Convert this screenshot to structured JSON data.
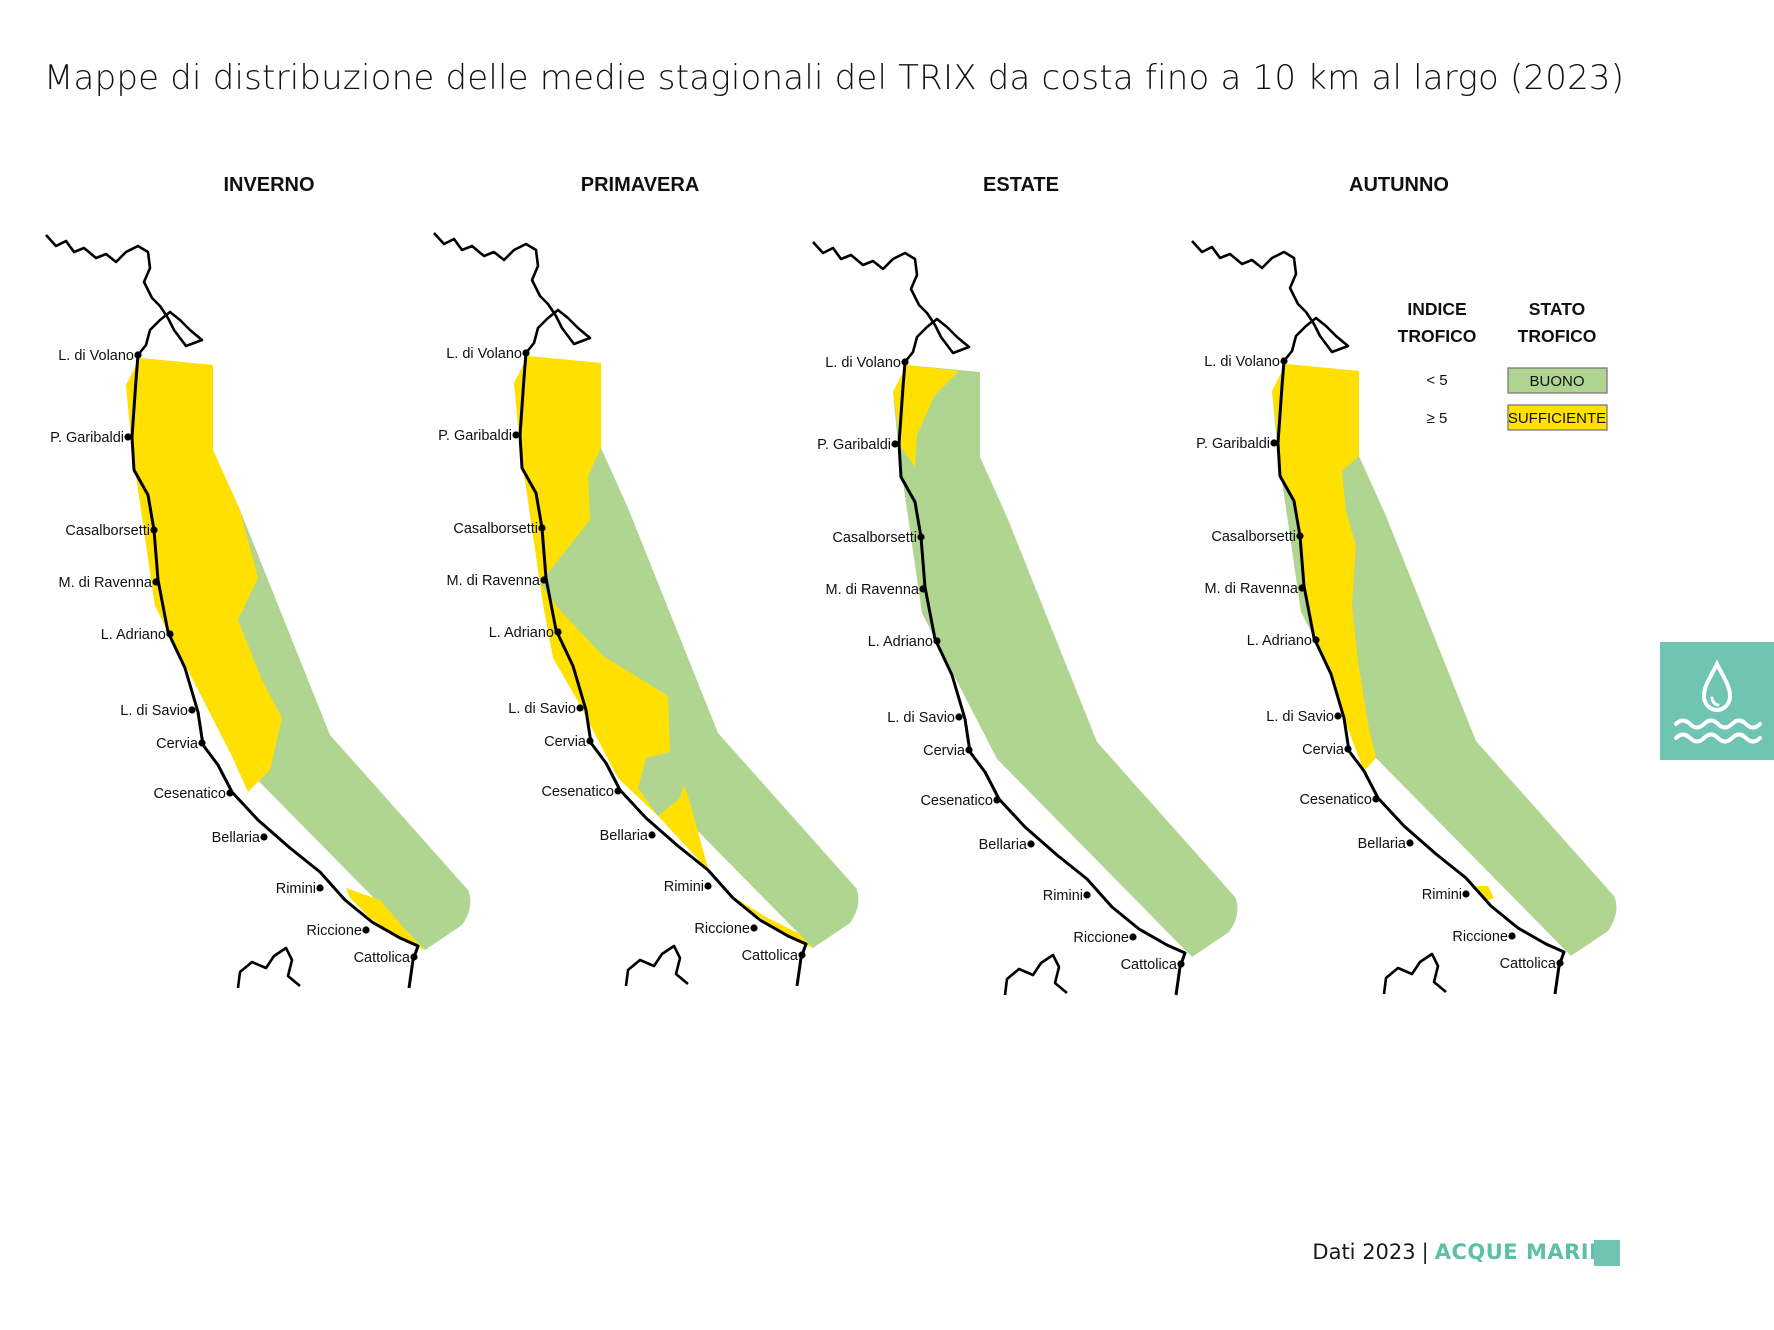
{
  "title": "Mappe di distribuzione delle medie stagionali del TRIX da costa fino a 10 km al largo (2023)",
  "seasons": [
    "INVERNO",
    "PRIMAVERA",
    "ESTATE",
    "AUTUNNO"
  ],
  "places": [
    "L. di Volano",
    "P. Garibaldi",
    "Casalborsetti",
    "M. di Ravenna",
    "L. Adriano",
    "L. di Savio",
    "Cervia",
    "Cesenatico",
    "Bellaria",
    "Rimini",
    "Riccione",
    "Cattolica"
  ],
  "legend": {
    "col1": [
      "INDICE",
      "TROFICO"
    ],
    "col2": [
      "STATO",
      "TROFICO"
    ],
    "rows": [
      {
        "index": "< 5",
        "state": "BUONO",
        "color": "#b0d590"
      },
      {
        "index": "≥ 5",
        "state": "SUFFICIENTE",
        "color": "#ffe000"
      }
    ]
  },
  "colors": {
    "buono": "#b0d590",
    "sufficiente": "#ffe000",
    "accent": "#6fc5b2"
  },
  "side_tab": {
    "icon": "water-drop-waves-icon"
  },
  "footer": {
    "year_text": "Dati 2023",
    "separator": "|",
    "section": "ACQUE MARINE"
  }
}
